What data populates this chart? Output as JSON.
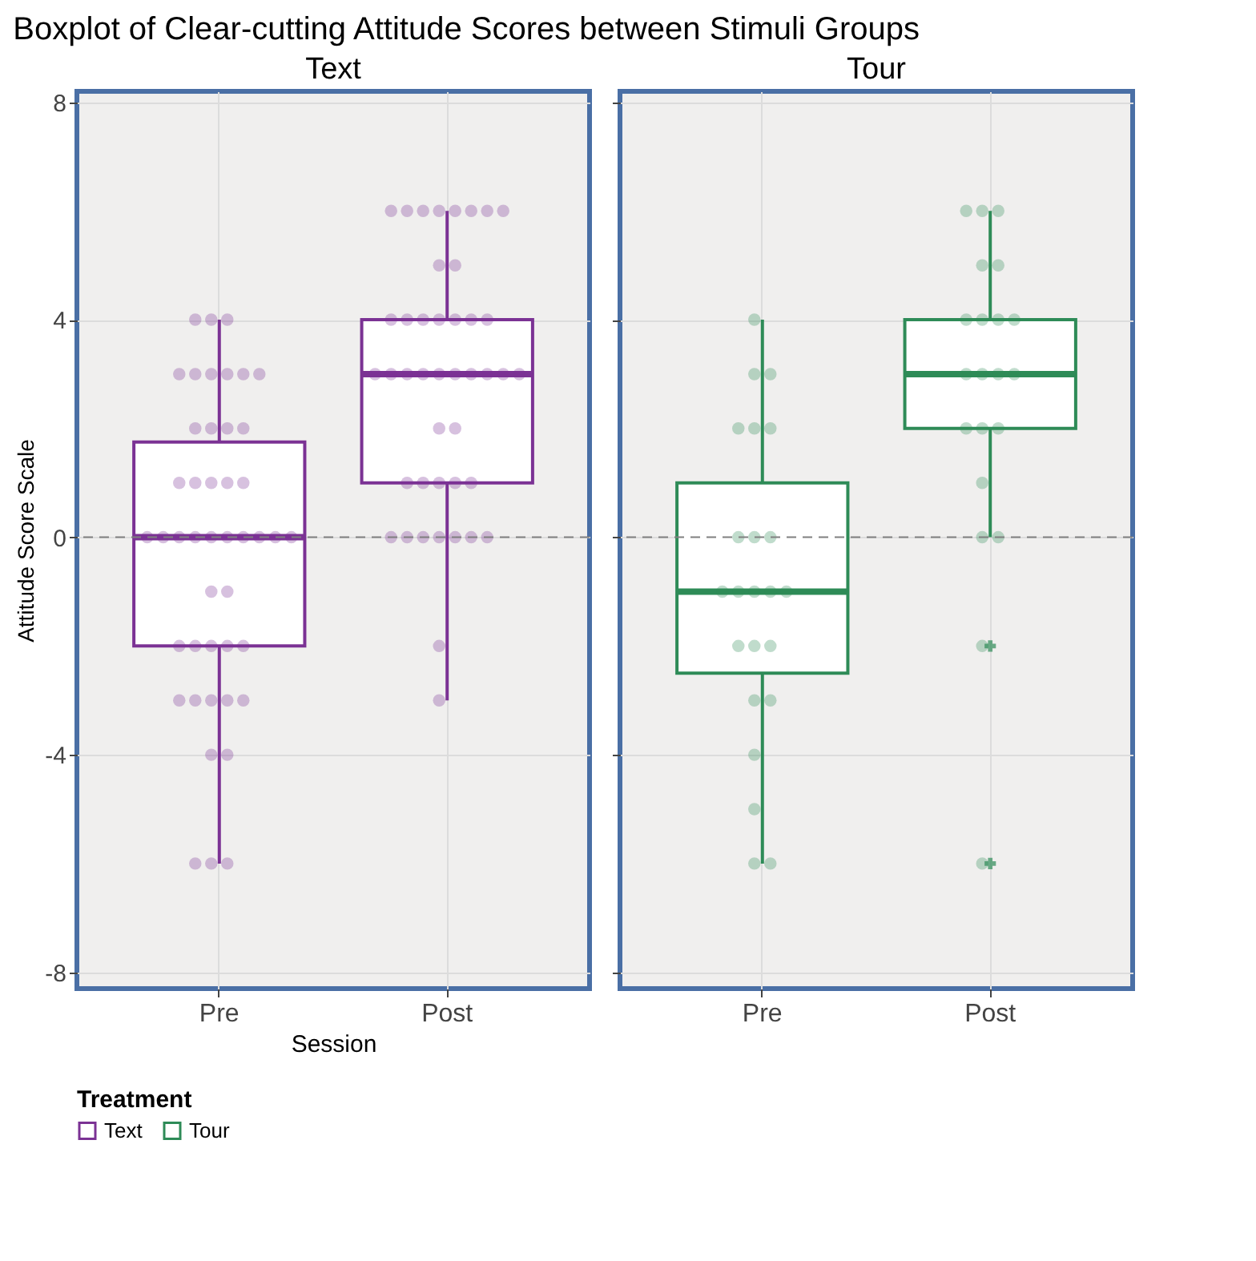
{
  "chart_data": [
    {
      "type": "box",
      "title": "Text",
      "annotations": [
        "Boxplot of Clear-cutting Attitude Scores between Stimuli Groups"
      ],
      "xlabel": "Session",
      "ylabel": "Attitude Score Scale",
      "legend_title": "Treatment",
      "legend": "bottom",
      "categories": [
        "Pre",
        "Post"
      ],
      "ylim": [
        -8.3,
        8.2
      ],
      "yticks": [
        -8,
        -4,
        0,
        4,
        8
      ],
      "grid": true,
      "ref_lines": [
        {
          "axis": "y",
          "value": 0,
          "line_style": "dashed",
          "color": "#808080"
        }
      ],
      "series": [
        {
          "name": "Text",
          "color": "#7b3294",
          "boxes": [
            {
              "low": -6,
              "q1": -2,
              "median": 0,
              "q3": 1.75,
              "high": 4
            },
            {
              "low": -3,
              "q1": 1,
              "median": 3,
              "q3": 4,
              "high": 6
            }
          ]
        },
        {
          "type": "scatter",
          "color": "#7b3294",
          "marker": "circle",
          "x": [
            "Pre",
            "Pre",
            "Pre",
            "Pre",
            "Pre",
            "Pre",
            "Pre",
            "Pre",
            "Pre",
            "Pre",
            "Pre",
            "Pre",
            "Pre",
            "Pre",
            "Pre",
            "Pre",
            "Pre",
            "Pre",
            "Pre",
            "Pre",
            "Pre",
            "Pre",
            "Pre",
            "Pre",
            "Pre",
            "Pre",
            "Pre",
            "Pre",
            "Pre",
            "Pre",
            "Pre",
            "Pre",
            "Pre",
            "Pre",
            "Pre",
            "Pre",
            "Pre",
            "Pre",
            "Pre",
            "Pre",
            "Pre",
            "Pre",
            "Pre",
            "Pre",
            "Pre",
            "Post",
            "Post",
            "Post",
            "Post",
            "Post",
            "Post",
            "Post",
            "Post",
            "Post",
            "Post",
            "Post",
            "Post",
            "Post",
            "Post",
            "Post",
            "Post",
            "Post",
            "Post",
            "Post",
            "Post",
            "Post",
            "Post",
            "Post",
            "Post",
            "Post",
            "Post",
            "Post",
            "Post",
            "Post",
            "Post",
            "Post",
            "Post",
            "Post",
            "Post",
            "Post",
            "Post",
            "Post",
            "Post",
            "Post",
            "Post",
            "Post",
            "Post",
            "Post"
          ],
          "values": [
            4,
            4,
            4,
            3,
            3,
            3,
            3,
            3,
            3,
            2,
            2,
            2,
            2,
            1,
            1,
            1,
            1,
            1,
            0,
            0,
            0,
            0,
            0,
            0,
            0,
            0,
            0,
            0,
            -1,
            -1,
            -2,
            -2,
            -2,
            -2,
            -2,
            -3,
            -3,
            -3,
            -3,
            -3,
            -4,
            -4,
            -6,
            -6,
            -6,
            6,
            6,
            6,
            6,
            6,
            6,
            6,
            6,
            5,
            5,
            4,
            4,
            4,
            4,
            4,
            4,
            4,
            3,
            3,
            3,
            3,
            3,
            3,
            3,
            3,
            3,
            3,
            2,
            2,
            1,
            1,
            1,
            1,
            1,
            0,
            0,
            0,
            0,
            0,
            0,
            0,
            -2,
            -3
          ]
        }
      ]
    },
    {
      "type": "box",
      "title": "Tour",
      "categories": [
        "Pre",
        "Post"
      ],
      "ylim": [
        -8.3,
        8.2
      ],
      "yticks": [
        -8,
        -4,
        0,
        4,
        8
      ],
      "grid": true,
      "tick_labels": "x",
      "ref_lines": [
        {
          "axis": "y",
          "value": 0,
          "line_style": "dashed",
          "color": "#808080"
        }
      ],
      "series": [
        {
          "name": "Tour",
          "color": "#2e8b57",
          "marker": "star",
          "boxes": [
            {
              "low": -6,
              "q1": -2.5,
              "median": -1,
              "q3": 1,
              "high": 4
            },
            {
              "low": 0,
              "q1": 2,
              "median": 3,
              "q3": 4,
              "high": 6,
              "outliers": [
                -2,
                -6
              ]
            }
          ]
        },
        {
          "type": "scatter",
          "color": "#2e8b57",
          "marker": "circle",
          "x": [
            "Pre",
            "Pre",
            "Pre",
            "Pre",
            "Pre",
            "Pre",
            "Pre",
            "Pre",
            "Pre",
            "Pre",
            "Pre",
            "Pre",
            "Pre",
            "Pre",
            "Pre",
            "Pre",
            "Pre",
            "Pre",
            "Pre",
            "Pre",
            "Pre",
            "Pre",
            "Pre",
            "Post",
            "Post",
            "Post",
            "Post",
            "Post",
            "Post",
            "Post",
            "Post",
            "Post",
            "Post",
            "Post",
            "Post",
            "Post",
            "Post",
            "Post",
            "Post",
            "Post",
            "Post",
            "Post",
            "Post",
            "Post"
          ],
          "values": [
            4,
            3,
            3,
            2,
            2,
            2,
            0,
            0,
            0,
            -1,
            -1,
            -1,
            -1,
            -1,
            -2,
            -2,
            -2,
            -3,
            -3,
            -4,
            -5,
            -6,
            -6,
            6,
            6,
            6,
            5,
            5,
            4,
            4,
            4,
            4,
            3,
            3,
            3,
            3,
            2,
            2,
            2,
            1,
            0,
            0,
            -2,
            -6
          ]
        }
      ]
    }
  ]
}
